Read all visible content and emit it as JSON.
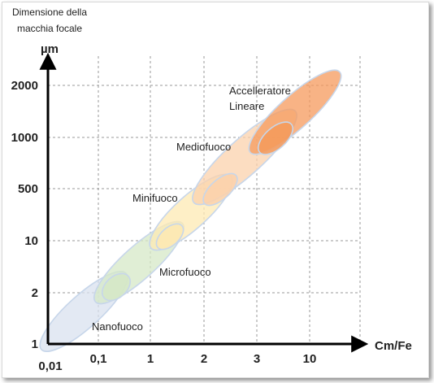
{
  "chart_data": {
    "type": "scatter",
    "title": "",
    "subtitle": "",
    "y_axis_caption": [
      "Dimensione della",
      "macchia focale"
    ],
    "y_unit": "µm",
    "x_unit": "Cm/Fe",
    "y_ticks": [
      "1",
      "2",
      "10",
      "500",
      "1000",
      "2000"
    ],
    "x_ticks": [
      "0,01",
      "0,1",
      "1",
      "2",
      "3",
      "10"
    ],
    "grid": true,
    "regions": [
      {
        "name": "Nanofuoco",
        "x_range": [
          "0,01",
          "0,1+"
        ],
        "y_range": [
          "1",
          "2"
        ],
        "color": "#d9e1ef"
      },
      {
        "name": "Microfuoco",
        "x_range": [
          "0,1",
          "1+"
        ],
        "y_range": [
          "2",
          "10"
        ],
        "color": "#d5e8c7"
      },
      {
        "name": "Minifuoco",
        "x_range": [
          "1",
          "2"
        ],
        "y_range": [
          "10",
          "500"
        ],
        "color": "#fde9b3"
      },
      {
        "name": "Mediofuoco",
        "x_range": [
          "2",
          "3+"
        ],
        "y_range": [
          "500",
          "1000"
        ],
        "color": "#fbd1ac"
      },
      {
        "name": "Accelleratore Lineare",
        "x_range": [
          "3",
          "10+"
        ],
        "y_range": [
          "1000",
          "2000"
        ],
        "color": "#f59a5c"
      }
    ],
    "envelope_color": "#c7d6ea"
  }
}
